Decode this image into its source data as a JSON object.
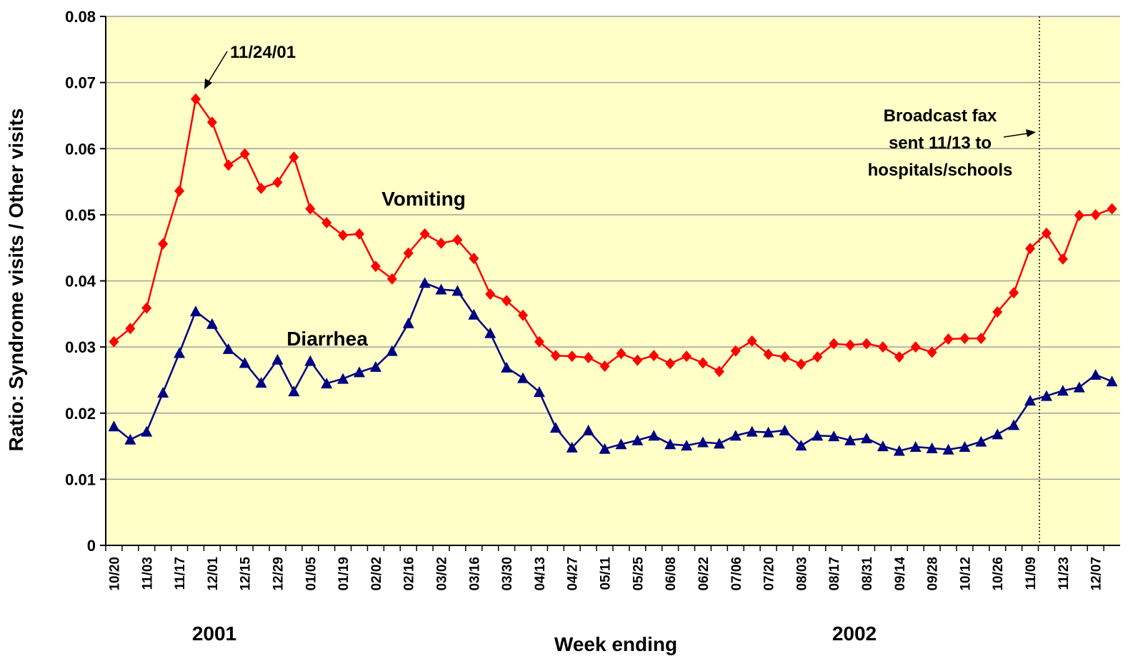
{
  "chart_data": {
    "type": "line",
    "x_label": "Week ending",
    "y_label": "Ratio: Syndrome visits / Other visits",
    "year_labels": [
      "2001",
      "2002"
    ],
    "annotations": {
      "peak": "11/24/01",
      "fax": [
        "Broadcast fax",
        "sent 11/13 to",
        "hospitals/schools"
      ]
    },
    "categories": [
      "10/20",
      null,
      "11/03",
      null,
      "11/17",
      null,
      "12/01",
      null,
      "12/15",
      null,
      "12/29",
      null,
      "01/05",
      null,
      "01/19",
      null,
      "02/02",
      null,
      "02/16",
      null,
      "03/02",
      null,
      "03/16",
      null,
      "03/30",
      null,
      "04/13",
      null,
      "04/27",
      null,
      "05/11",
      null,
      "05/25",
      null,
      "06/08",
      null,
      "06/22",
      null,
      "07/06",
      null,
      "07/20",
      null,
      "08/03",
      null,
      "08/17",
      null,
      "08/31",
      null,
      "09/14",
      null,
      "09/28",
      null,
      "10/12",
      null,
      "10/26",
      null,
      "11/09",
      null,
      "11/23",
      null,
      "12/07",
      null
    ],
    "series": [
      {
        "name": "Vomiting",
        "color": "#ff0000",
        "marker": "diamond",
        "values": [
          0.0308,
          0.0328,
          0.0359,
          0.0456,
          0.0536,
          0.0675,
          0.064,
          0.0575,
          0.0592,
          0.054,
          0.0549,
          0.0587,
          0.0509,
          0.0488,
          0.0469,
          0.0471,
          0.0422,
          0.0403,
          0.0442,
          0.0471,
          0.0457,
          0.0462,
          0.0434,
          0.038,
          0.037,
          0.0348,
          0.0308,
          0.0287,
          0.0286,
          0.0284,
          0.0271,
          0.029,
          0.028,
          0.0287,
          0.0275,
          0.0286,
          0.0276,
          0.0263,
          0.0294,
          0.0309,
          0.0289,
          0.0285,
          0.0274,
          0.0285,
          0.0305,
          0.0303,
          0.0305,
          0.03,
          0.0285,
          0.03,
          0.0292,
          0.0312,
          0.0313,
          0.0313,
          0.0353,
          0.0382,
          0.0449,
          0.0472,
          0.0433,
          0.0499,
          0.05,
          0.0509
        ]
      },
      {
        "name": "Diarrhea",
        "color": "#000080",
        "marker": "triangle",
        "values": [
          0.018,
          0.016,
          0.0172,
          0.0231,
          0.0291,
          0.0354,
          0.0335,
          0.0297,
          0.0276,
          0.0246,
          0.0281,
          0.0233,
          0.0279,
          0.0245,
          0.0252,
          0.0262,
          0.027,
          0.0294,
          0.0336,
          0.0397,
          0.0387,
          0.0385,
          0.0349,
          0.0321,
          0.0269,
          0.0253,
          0.0232,
          0.0178,
          0.0148,
          0.0174,
          0.0146,
          0.0153,
          0.0159,
          0.0166,
          0.0153,
          0.0151,
          0.0156,
          0.0154,
          0.0166,
          0.0172,
          0.0171,
          0.0174,
          0.0151,
          0.0166,
          0.0165,
          0.0159,
          0.0162,
          0.015,
          0.0143,
          0.0149,
          0.0147,
          0.0145,
          0.0149,
          0.0157,
          0.0168,
          0.0182,
          0.0219,
          0.0226,
          0.0234,
          0.0239,
          0.0258,
          0.0248
        ]
      }
    ],
    "ylim": [
      0,
      0.08
    ],
    "yticks": [
      0,
      0.01,
      0.02,
      0.03,
      0.04,
      0.05,
      0.06,
      0.07,
      0.08
    ],
    "grid": true,
    "plot_background": "#ffffc8"
  }
}
